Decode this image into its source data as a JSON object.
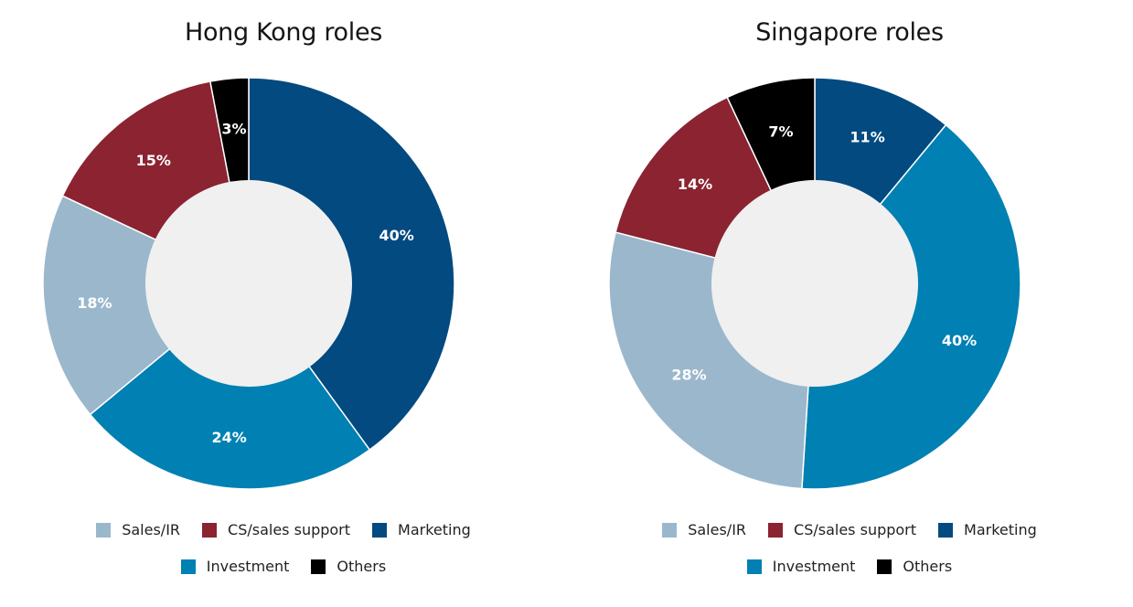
{
  "colors": {
    "Sales/IR": "#9bb7cc",
    "CS/sales support": "#8b2331",
    "Marketing": "#024a80",
    "Investment": "#0080b3",
    "Others": "#000000",
    "hole": "#f0f0f0"
  },
  "chart_data": [
    {
      "type": "pie",
      "title": "Hong Kong roles",
      "donut": true,
      "start": "top, clockwise",
      "categories": [
        "Marketing",
        "Investment",
        "Sales/IR",
        "CS/sales support",
        "Others"
      ],
      "values": [
        40,
        24,
        18,
        15,
        3
      ],
      "labels": [
        "40%",
        "24%",
        "18%",
        "15%",
        "3%"
      ],
      "legend": {
        "position": "bottom",
        "rows": [
          [
            "Sales/IR",
            "CS/sales support",
            "Marketing"
          ],
          [
            "Investment",
            "Others"
          ]
        ]
      }
    },
    {
      "type": "pie",
      "title": "Singapore roles",
      "donut": true,
      "start": "top, clockwise",
      "categories": [
        "Marketing",
        "Investment",
        "Sales/IR",
        "CS/sales support",
        "Others"
      ],
      "values": [
        11,
        40,
        28,
        14,
        7
      ],
      "labels": [
        "11%",
        "40%",
        "28%",
        "14%",
        "7%"
      ],
      "legend": {
        "position": "bottom",
        "rows": [
          [
            "Sales/IR",
            "CS/sales support",
            "Marketing"
          ],
          [
            "Investment",
            "Others"
          ]
        ]
      }
    }
  ]
}
